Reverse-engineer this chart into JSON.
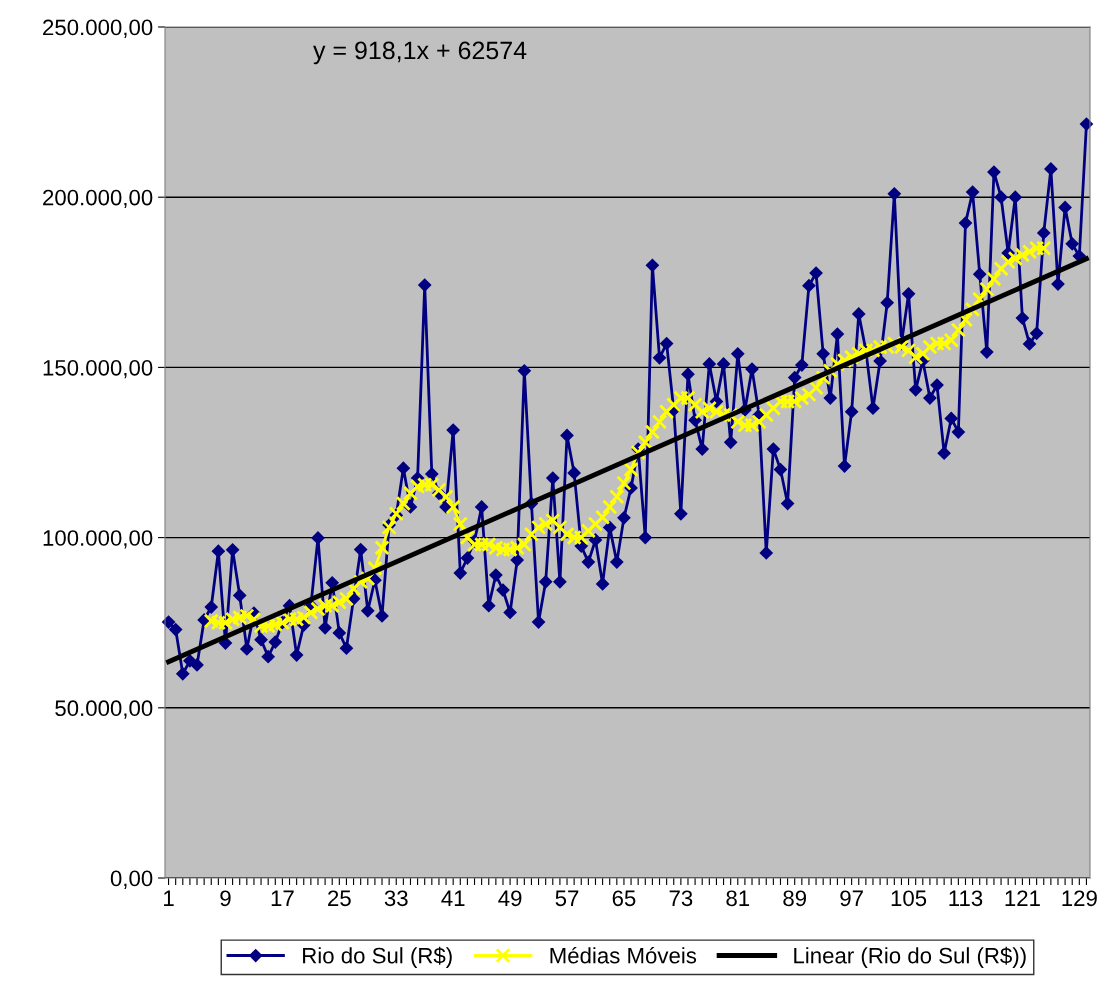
{
  "chart_data": {
    "type": "line",
    "x": [
      1,
      2,
      3,
      4,
      5,
      6,
      7,
      8,
      9,
      10,
      11,
      12,
      13,
      14,
      15,
      16,
      17,
      18,
      19,
      20,
      21,
      22,
      23,
      24,
      25,
      26,
      27,
      28,
      29,
      30,
      31,
      32,
      33,
      34,
      35,
      36,
      37,
      38,
      39,
      40,
      41,
      42,
      43,
      44,
      45,
      46,
      47,
      48,
      49,
      50,
      51,
      52,
      53,
      54,
      55,
      56,
      57,
      58,
      59,
      60,
      61,
      62,
      63,
      64,
      65,
      66,
      67,
      68,
      69,
      70,
      71,
      72,
      73,
      74,
      75,
      76,
      77,
      78,
      79,
      80,
      81,
      82,
      83,
      84,
      85,
      86,
      87,
      88,
      89,
      90,
      91,
      92,
      93,
      94,
      95,
      96,
      97,
      98,
      99,
      100,
      101,
      102,
      103,
      104,
      105,
      106,
      107,
      108,
      109,
      110,
      111,
      112,
      113,
      114,
      115,
      116,
      117,
      118,
      119,
      120,
      121,
      122,
      123,
      124,
      125,
      126,
      127,
      128,
      129,
      130
    ],
    "series": [
      {
        "name": "Rio do Sul (R$)",
        "color": "#000080",
        "marker": "diamond",
        "values": [
          75200,
          73000,
          60000,
          63800,
          62600,
          75800,
          79600,
          96000,
          69000,
          96400,
          83000,
          67300,
          77800,
          70000,
          65000,
          69300,
          75000,
          80000,
          65500,
          74300,
          80000,
          99900,
          73500,
          86700,
          72000,
          67500,
          82000,
          96500,
          78500,
          87500,
          77000,
          103700,
          106600,
          120400,
          109000,
          117500,
          174200,
          118700,
          113000,
          109000,
          131600,
          89600,
          94000,
          99000,
          109000,
          80000,
          89000,
          84600,
          78000,
          93400,
          149000,
          110000,
          75200,
          87000,
          117500,
          87000,
          130000,
          119000,
          97500,
          92800,
          99300,
          86400,
          103000,
          92800,
          105800,
          114600,
          126000,
          100000,
          180000,
          152800,
          157000,
          137500,
          107000,
          148000,
          134500,
          126000,
          151000,
          140000,
          151000,
          128000,
          154000,
          137500,
          149500,
          136000,
          95500,
          126000,
          120000,
          110000,
          147000,
          150700,
          174000,
          177700,
          154000,
          141000,
          159800,
          121000,
          137000,
          165700,
          155000,
          138000,
          151900,
          169000,
          201000,
          157000,
          171600,
          143400,
          152000,
          141000,
          144800,
          124800,
          135000,
          131000,
          192400,
          201500,
          177400,
          154500,
          207400,
          200000,
          183600,
          200000,
          164500,
          156900,
          160000,
          189500,
          208300,
          174500,
          197000,
          186300,
          182700,
          221500
        ]
      },
      {
        "name": "Médias Móveis",
        "color": "#ffff00",
        "marker": "cross",
        "values": [
          null,
          null,
          null,
          null,
          null,
          null,
          75500,
          75000,
          75000,
          76000,
          76500,
          77000,
          76000,
          74000,
          74000,
          74500,
          75000,
          76000,
          76000,
          76500,
          78000,
          79000,
          80000,
          80000,
          81000,
          82000,
          85000,
          87000,
          88000,
          91000,
          97000,
          103000,
          107000,
          110000,
          113000,
          115000,
          115500,
          115500,
          114000,
          112000,
          109000,
          104000,
          100000,
          98000,
          98000,
          98000,
          97000,
          96500,
          96500,
          97000,
          98000,
          101000,
          103000,
          104000,
          105000,
          103000,
          101000,
          100000,
          100000,
          102000,
          104000,
          106000,
          109000,
          112000,
          116000,
          120000,
          125000,
          128000,
          131000,
          134000,
          137000,
          139000,
          141000,
          141000,
          139000,
          137000,
          138000,
          137000,
          136000,
          136000,
          134000,
          133000,
          133000,
          134000,
          136000,
          138000,
          140000,
          140000,
          140000,
          141000,
          142000,
          144000,
          147000,
          149000,
          151000,
          152000,
          153000,
          154000,
          155000,
          155000,
          156000,
          156000,
          157000,
          156000,
          155000,
          153000,
          154000,
          156000,
          157000,
          157000,
          158000,
          161000,
          164000,
          167000,
          170000,
          173000,
          176000,
          179000,
          181000,
          182000,
          183000,
          184000,
          185000,
          185000,
          null,
          null,
          null,
          null,
          null,
          null
        ]
      },
      {
        "name": "Linear (Rio do Sul (R$))",
        "color": "#000000",
        "marker": "none",
        "x": [
          1,
          130
        ],
        "values": [
          63500,
          181900
        ]
      }
    ],
    "annotations": [
      "y = 918,1x + 62574"
    ],
    "xlim": [
      0.5,
      130.5
    ],
    "xticks": [
      1,
      {
        "value": 2,
        "label": null
      },
      {
        "value": 3,
        "label": null
      },
      {
        "value": 4,
        "label": null
      },
      {
        "value": 5,
        "label": null
      },
      {
        "value": 6,
        "label": null
      },
      {
        "value": 7,
        "label": null
      },
      {
        "value": 8,
        "label": null
      },
      9,
      {
        "value": 10,
        "label": null
      },
      {
        "value": 11,
        "label": null
      },
      {
        "value": 12,
        "label": null
      },
      {
        "value": 13,
        "label": null
      },
      {
        "value": 14,
        "label": null
      },
      {
        "value": 15,
        "label": null
      },
      {
        "value": 16,
        "label": null
      },
      17,
      {
        "value": 18,
        "label": null
      },
      {
        "value": 19,
        "label": null
      },
      {
        "value": 20,
        "label": null
      },
      {
        "value": 21,
        "label": null
      },
      {
        "value": 22,
        "label": null
      },
      {
        "value": 23,
        "label": null
      },
      {
        "value": 24,
        "label": null
      },
      25,
      {
        "value": 26,
        "label": null
      },
      {
        "value": 27,
        "label": null
      },
      {
        "value": 28,
        "label": null
      },
      {
        "value": 29,
        "label": null
      },
      {
        "value": 30,
        "label": null
      },
      {
        "value": 31,
        "label": null
      },
      {
        "value": 32,
        "label": null
      },
      33,
      {
        "value": 34,
        "label": null
      },
      {
        "value": 35,
        "label": null
      },
      {
        "value": 36,
        "label": null
      },
      {
        "value": 37,
        "label": null
      },
      {
        "value": 38,
        "label": null
      },
      {
        "value": 39,
        "label": null
      },
      {
        "value": 40,
        "label": null
      },
      41,
      {
        "value": 42,
        "label": null
      },
      {
        "value": 43,
        "label": null
      },
      {
        "value": 44,
        "label": null
      },
      {
        "value": 45,
        "label": null
      },
      {
        "value": 46,
        "label": null
      },
      {
        "value": 47,
        "label": null
      },
      {
        "value": 48,
        "label": null
      },
      49,
      {
        "value": 50,
        "label": null
      },
      {
        "value": 51,
        "label": null
      },
      {
        "value": 52,
        "label": null
      },
      {
        "value": 53,
        "label": null
      },
      {
        "value": 54,
        "label": null
      },
      {
        "value": 55,
        "label": null
      },
      {
        "value": 56,
        "label": null
      },
      57,
      {
        "value": 58,
        "label": null
      },
      {
        "value": 59,
        "label": null
      },
      {
        "value": 60,
        "label": null
      },
      {
        "value": 61,
        "label": null
      },
      {
        "value": 62,
        "label": null
      },
      {
        "value": 63,
        "label": null
      },
      {
        "value": 64,
        "label": null
      },
      65,
      {
        "value": 66,
        "label": null
      },
      {
        "value": 67,
        "label": null
      },
      {
        "value": 68,
        "label": null
      },
      {
        "value": 69,
        "label": null
      },
      {
        "value": 70,
        "label": null
      },
      {
        "value": 71,
        "label": null
      },
      {
        "value": 72,
        "label": null
      },
      73,
      {
        "value": 74,
        "label": null
      },
      {
        "value": 75,
        "label": null
      },
      {
        "value": 76,
        "label": null
      },
      {
        "value": 77,
        "label": null
      },
      {
        "value": 78,
        "label": null
      },
      {
        "value": 79,
        "label": null
      },
      {
        "value": 80,
        "label": null
      },
      81,
      {
        "value": 82,
        "label": null
      },
      {
        "value": 83,
        "label": null
      },
      {
        "value": 84,
        "label": null
      },
      {
        "value": 85,
        "label": null
      },
      {
        "value": 86,
        "label": null
      },
      {
        "value": 87,
        "label": null
      },
      {
        "value": 88,
        "label": null
      },
      89,
      {
        "value": 90,
        "label": null
      },
      {
        "value": 91,
        "label": null
      },
      {
        "value": 92,
        "label": null
      },
      {
        "value": 93,
        "label": null
      },
      {
        "value": 94,
        "label": null
      },
      {
        "value": 95,
        "label": null
      },
      {
        "value": 96,
        "label": null
      },
      97,
      {
        "value": 98,
        "label": null
      },
      {
        "value": 99,
        "label": null
      },
      {
        "value": 100,
        "label": null
      },
      {
        "value": 101,
        "label": null
      },
      {
        "value": 102,
        "label": null
      },
      {
        "value": 103,
        "label": null
      },
      {
        "value": 104,
        "label": null
      },
      105,
      {
        "value": 106,
        "label": null
      },
      {
        "value": 107,
        "label": null
      },
      {
        "value": 108,
        "label": null
      },
      {
        "value": 109,
        "label": null
      },
      {
        "value": 110,
        "label": null
      },
      {
        "value": 111,
        "label": null
      },
      {
        "value": 112,
        "label": null
      },
      113,
      {
        "value": 114,
        "label": null
      },
      {
        "value": 115,
        "label": null
      },
      {
        "value": 116,
        "label": null
      },
      {
        "value": 117,
        "label": null
      },
      {
        "value": 118,
        "label": null
      },
      {
        "value": 119,
        "label": null
      },
      {
        "value": 120,
        "label": null
      },
      121,
      {
        "value": 122,
        "label": null
      },
      {
        "value": 123,
        "label": null
      },
      {
        "value": 124,
        "label": null
      },
      {
        "value": 125,
        "label": null
      },
      {
        "value": 126,
        "label": null
      },
      {
        "value": 127,
        "label": null
      },
      {
        "value": 128,
        "label": null
      },
      129,
      {
        "value": 130,
        "label": null
      }
    ],
    "ylim": [
      0,
      250000
    ],
    "yticks": [
      {
        "value": 0,
        "label": "0,00"
      },
      {
        "value": 50000,
        "label": "50.000,00"
      },
      {
        "value": 100000,
        "label": "100.000,00"
      },
      {
        "value": 150000,
        "label": "150.000,00"
      },
      {
        "value": 200000,
        "label": "200.000,00"
      },
      {
        "value": 250000,
        "label": "250.000,00"
      }
    ],
    "grid": "y",
    "legend": "bottom",
    "line_style": "solid"
  }
}
